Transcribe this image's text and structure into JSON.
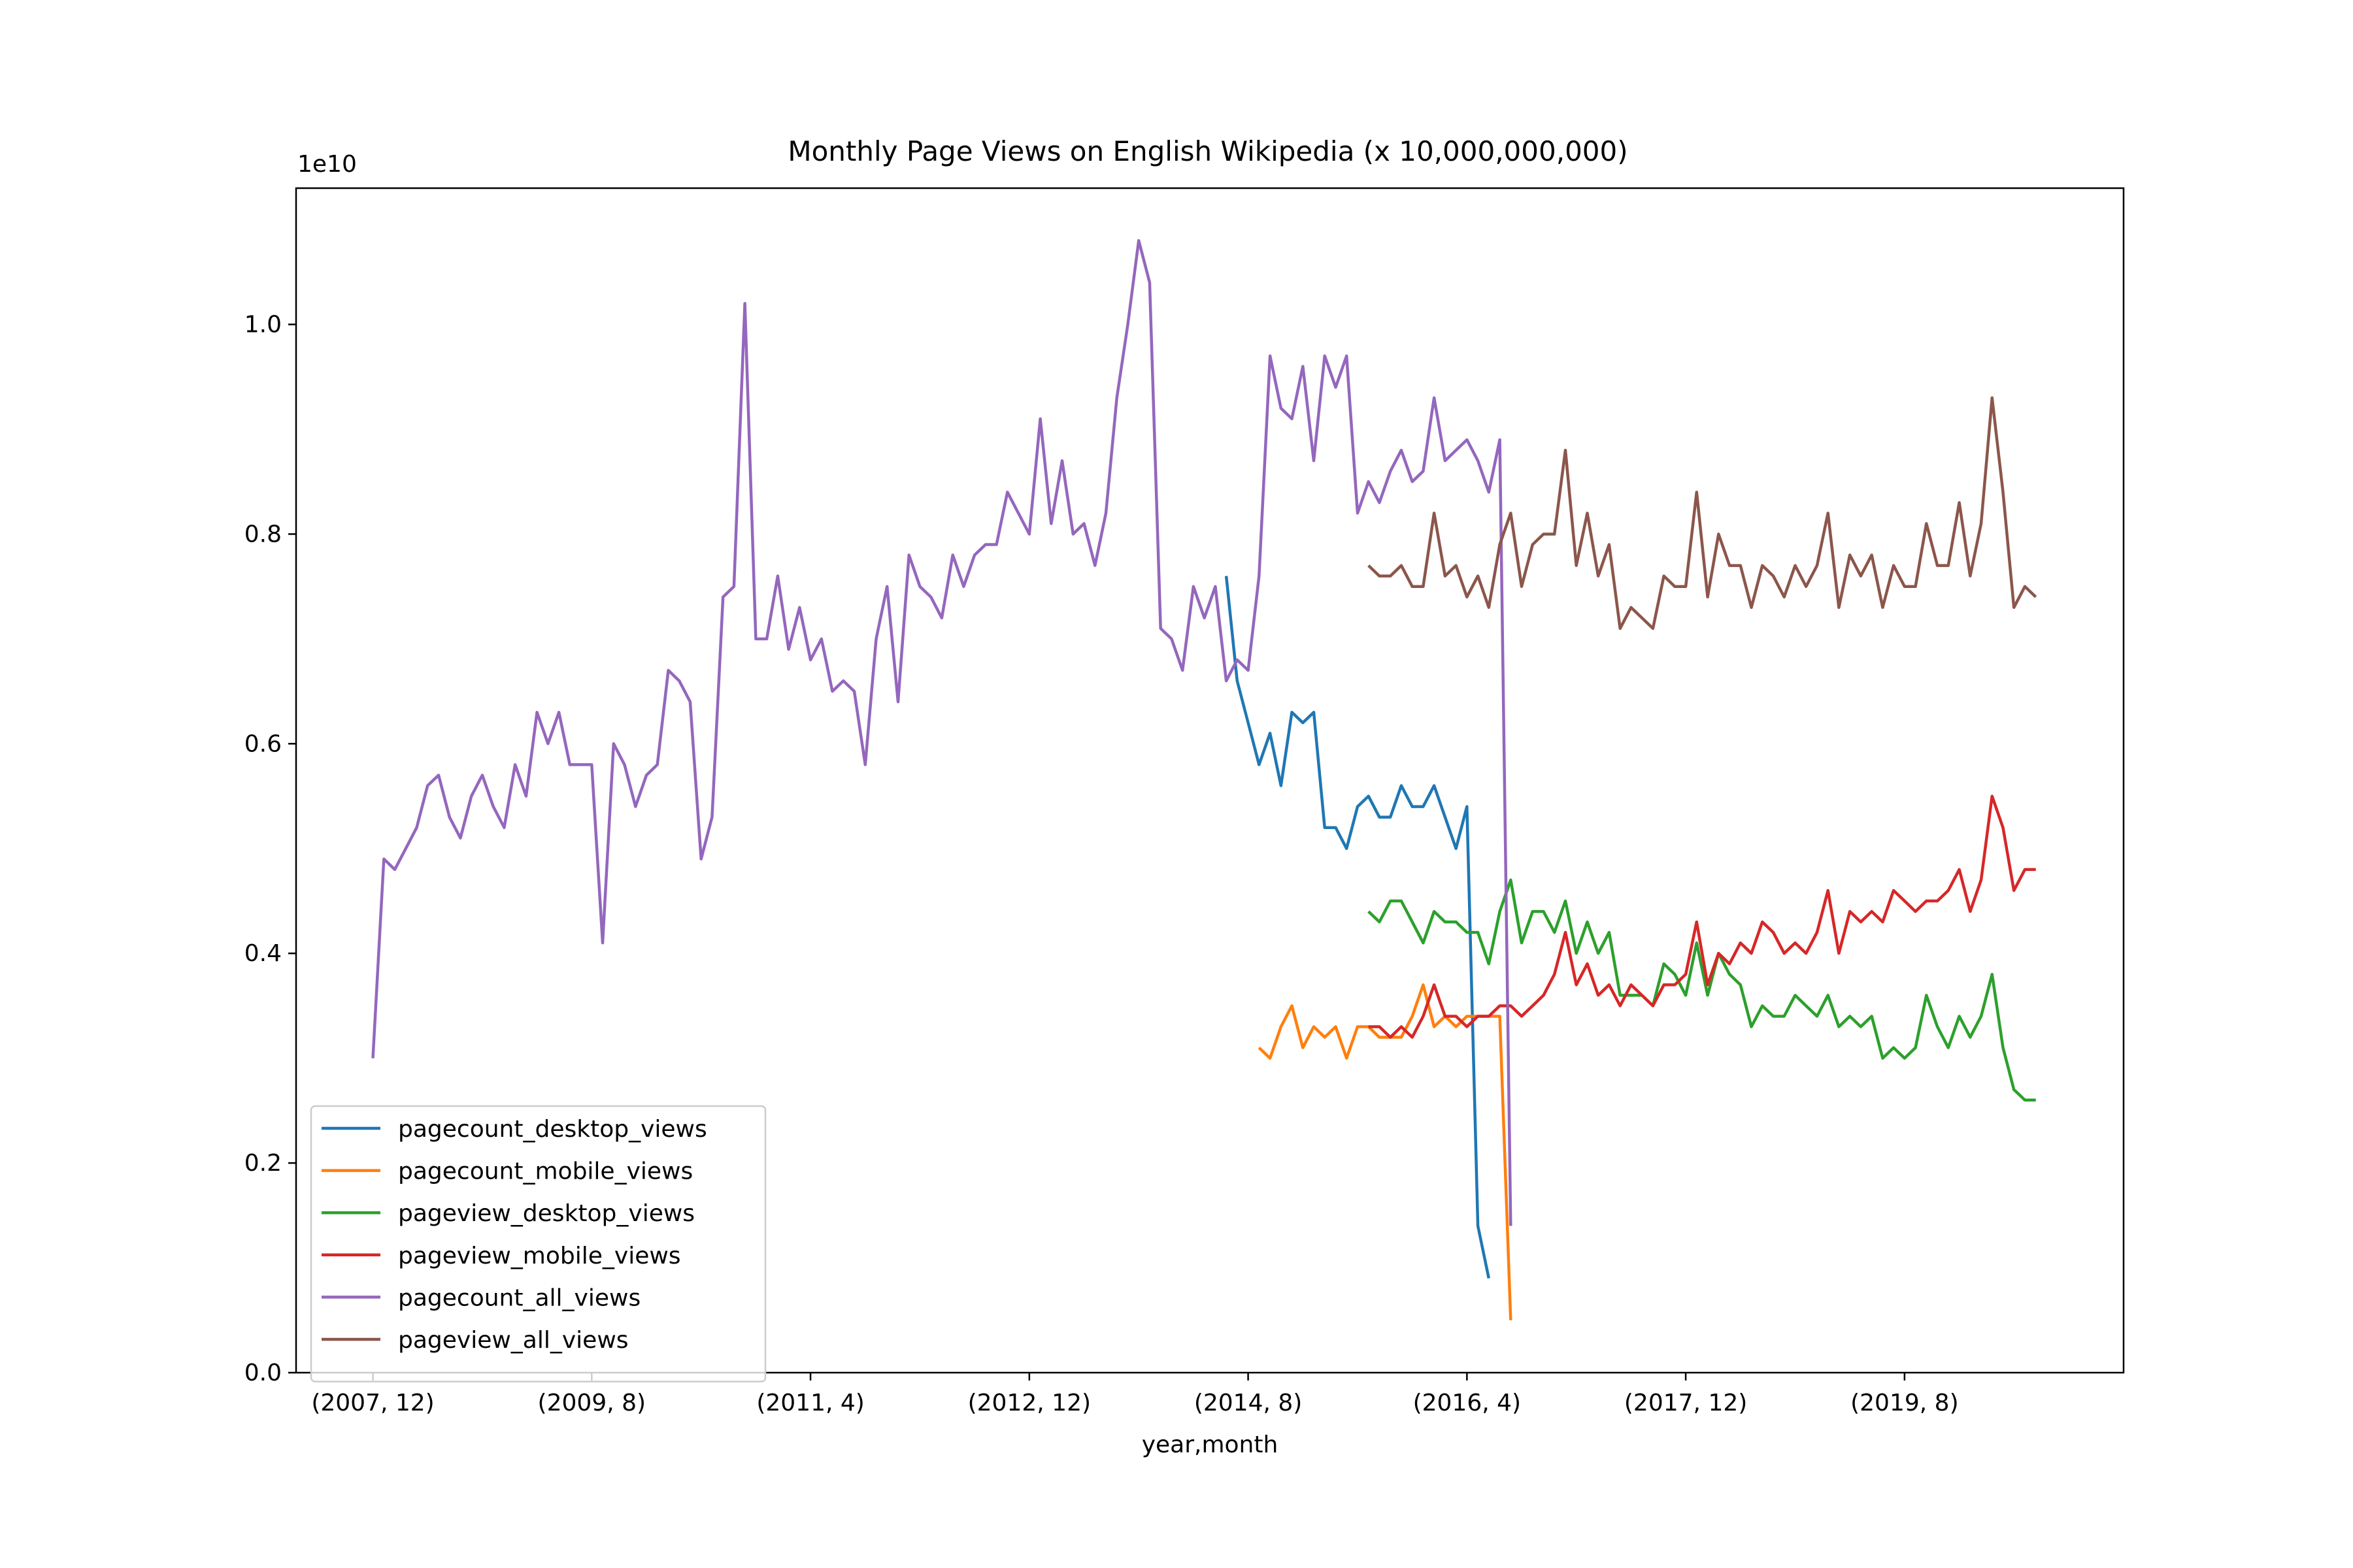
{
  "chart_data": {
    "type": "line",
    "title": "Monthly Page Views on English Wikipedia (x 10,000,000,000)",
    "xlabel": "year,month",
    "ylabel": "",
    "y_offset_label": "1e10",
    "y_multiplier": 10000000000,
    "ylim": [
      0,
      1.13
    ],
    "y_ticks": [
      0.0,
      0.2,
      0.4,
      0.6,
      0.8,
      1.0
    ],
    "y_tick_labels": [
      "0.0",
      "0.2",
      "0.4",
      "0.6",
      "0.8",
      "1.0"
    ],
    "x_tick_labels": [
      "(2007, 12)",
      "(2009, 8)",
      "(2011, 4)",
      "(2012, 12)",
      "(2014, 8)",
      "(2016, 4)",
      "(2017, 12)",
      "(2019, 8)"
    ],
    "x_start": "2007-12",
    "x_end": "2020-09",
    "legend_position": "lower-left",
    "grid": false,
    "series": [
      {
        "name": "pagecount_desktop_views",
        "color": "#1f77b4",
        "start": "2014-06",
        "values": [
          0.76,
          0.66,
          0.62,
          0.58,
          0.61,
          0.56,
          0.63,
          0.62,
          0.63,
          0.52,
          0.52,
          0.5,
          0.54,
          0.55,
          0.53,
          0.53,
          0.56,
          0.54,
          0.54,
          0.56,
          0.53,
          0.5,
          0.54,
          0.14,
          0.09
        ]
      },
      {
        "name": "pagecount_mobile_views",
        "color": "#ff7f0e",
        "start": "2014-09",
        "values": [
          0.31,
          0.3,
          0.33,
          0.35,
          0.31,
          0.33,
          0.32,
          0.33,
          0.3,
          0.33,
          0.33,
          0.32,
          0.32,
          0.32,
          0.34,
          0.37,
          0.33,
          0.34,
          0.33,
          0.34,
          0.34,
          0.34,
          0.34,
          0.05
        ]
      },
      {
        "name": "pageview_desktop_views",
        "color": "#2ca02c",
        "start": "2015-07",
        "values": [
          0.44,
          0.43,
          0.45,
          0.45,
          0.43,
          0.41,
          0.44,
          0.43,
          0.43,
          0.42,
          0.42,
          0.39,
          0.44,
          0.47,
          0.41,
          0.44,
          0.44,
          0.42,
          0.45,
          0.4,
          0.43,
          0.4,
          0.42,
          0.36,
          0.36,
          0.36,
          0.35,
          0.39,
          0.38,
          0.36,
          0.41,
          0.36,
          0.4,
          0.38,
          0.37,
          0.33,
          0.35,
          0.34,
          0.34,
          0.36,
          0.35,
          0.34,
          0.36,
          0.33,
          0.34,
          0.33,
          0.34,
          0.3,
          0.31,
          0.3,
          0.31,
          0.36,
          0.33,
          0.31,
          0.34,
          0.32,
          0.34,
          0.38,
          0.31,
          0.27,
          0.26,
          0.26
        ]
      },
      {
        "name": "pageview_mobile_views",
        "color": "#d62728",
        "start": "2015-07",
        "values": [
          0.33,
          0.33,
          0.32,
          0.33,
          0.32,
          0.34,
          0.37,
          0.34,
          0.34,
          0.33,
          0.34,
          0.34,
          0.35,
          0.35,
          0.34,
          0.35,
          0.36,
          0.38,
          0.42,
          0.37,
          0.39,
          0.36,
          0.37,
          0.35,
          0.37,
          0.36,
          0.35,
          0.37,
          0.37,
          0.38,
          0.43,
          0.37,
          0.4,
          0.39,
          0.41,
          0.4,
          0.43,
          0.42,
          0.4,
          0.41,
          0.4,
          0.42,
          0.46,
          0.4,
          0.44,
          0.43,
          0.44,
          0.43,
          0.46,
          0.45,
          0.44,
          0.45,
          0.45,
          0.46,
          0.48,
          0.44,
          0.47,
          0.55,
          0.52,
          0.46,
          0.48,
          0.48
        ]
      },
      {
        "name": "pagecount_all_views",
        "color": "#9467bd",
        "start": "2007-12",
        "values": [
          0.3,
          0.49,
          0.48,
          0.5,
          0.52,
          0.56,
          0.57,
          0.53,
          0.51,
          0.55,
          0.57,
          0.54,
          0.52,
          0.58,
          0.55,
          0.63,
          0.6,
          0.63,
          0.58,
          0.58,
          0.58,
          0.41,
          0.6,
          0.58,
          0.54,
          0.57,
          0.58,
          0.67,
          0.66,
          0.64,
          0.49,
          0.53,
          0.74,
          0.75,
          1.02,
          0.7,
          0.7,
          0.76,
          0.69,
          0.73,
          0.68,
          0.7,
          0.65,
          0.66,
          0.65,
          0.58,
          0.7,
          0.75,
          0.64,
          0.78,
          0.75,
          0.74,
          0.72,
          0.78,
          0.75,
          0.78,
          0.79,
          0.79,
          0.84,
          0.82,
          0.8,
          0.91,
          0.81,
          0.87,
          0.8,
          0.81,
          0.77,
          0.82,
          0.93,
          1.0,
          1.08,
          1.04,
          0.71,
          0.7,
          0.67,
          0.75,
          0.72,
          0.75,
          0.66,
          0.68,
          0.67,
          0.76,
          0.97,
          0.92,
          0.91,
          0.96,
          0.87,
          0.97,
          0.94,
          0.97,
          0.82,
          0.85,
          0.83,
          0.86,
          0.88,
          0.85,
          0.86,
          0.93,
          0.87,
          0.88,
          0.89,
          0.87,
          0.84,
          0.89,
          0.14
        ]
      },
      {
        "name": "pageview_all_views",
        "color": "#8c564b",
        "start": "2015-07",
        "values": [
          0.77,
          0.76,
          0.76,
          0.77,
          0.75,
          0.75,
          0.82,
          0.76,
          0.77,
          0.74,
          0.76,
          0.73,
          0.79,
          0.82,
          0.75,
          0.79,
          0.8,
          0.8,
          0.88,
          0.77,
          0.82,
          0.76,
          0.79,
          0.71,
          0.73,
          0.72,
          0.71,
          0.76,
          0.75,
          0.75,
          0.84,
          0.74,
          0.8,
          0.77,
          0.77,
          0.73,
          0.77,
          0.76,
          0.74,
          0.77,
          0.75,
          0.77,
          0.82,
          0.73,
          0.78,
          0.76,
          0.78,
          0.73,
          0.77,
          0.75,
          0.75,
          0.81,
          0.77,
          0.77,
          0.83,
          0.76,
          0.81,
          0.93,
          0.84,
          0.73,
          0.75,
          0.74
        ]
      }
    ]
  }
}
